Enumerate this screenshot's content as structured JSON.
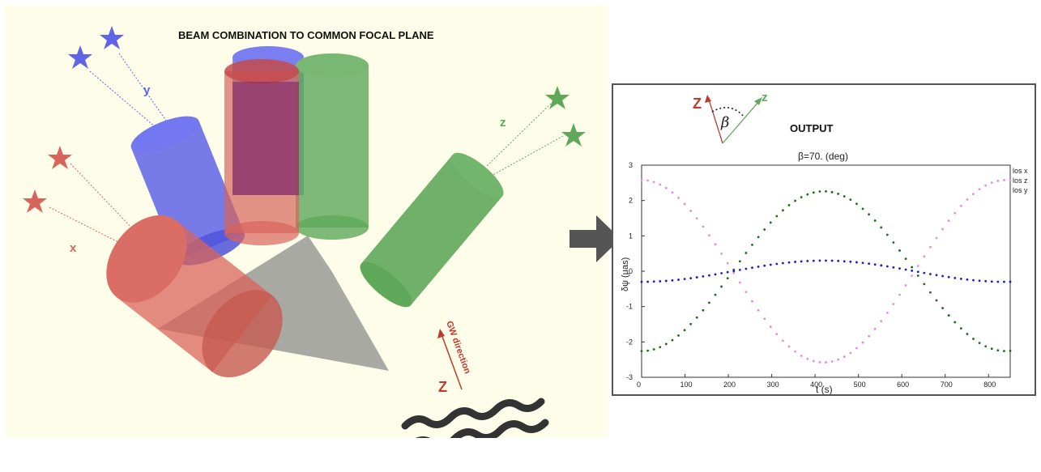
{
  "scene": {
    "title": "BEAM COMBINATION TO COMMON FOCAL PLANE",
    "axis_labels": {
      "x": "x",
      "y": "y",
      "z": "z"
    },
    "gw_label": "GW direction",
    "gw_axis": "Z",
    "colors": {
      "x": "#d9645a",
      "y": "#5f64e8",
      "z": "#5fa85a",
      "cone": "#8c8c8c",
      "wave": "#333333"
    }
  },
  "output": {
    "title": "OUTPUT",
    "inset": {
      "z_big": "Z",
      "z_small": "z",
      "beta": "β"
    }
  },
  "chart_data": {
    "type": "scatter",
    "title": "β=70.      (deg)",
    "xlabel": "t (s)",
    "ylabel": "δψ (μas)",
    "xlim": [
      0,
      850
    ],
    "ylim": [
      -3,
      3
    ],
    "xticks": [
      0,
      100,
      200,
      300,
      400,
      500,
      600,
      700,
      800
    ],
    "yticks": [
      -3,
      -2,
      -1,
      0,
      1,
      2,
      3
    ],
    "legend_position": "right",
    "series": [
      {
        "name": "los x",
        "color": "#1a6b1a",
        "amplitude": 2.26,
        "peak_t": 420
      },
      {
        "name": "los z",
        "color": "#e58ae0",
        "amplitude": -2.58,
        "peak_t": 420
      },
      {
        "name": "los y",
        "color": "#1a1ad6",
        "amplitude": 0.3,
        "peak_t": 420
      }
    ],
    "period_s": 840,
    "n_points": 61
  }
}
